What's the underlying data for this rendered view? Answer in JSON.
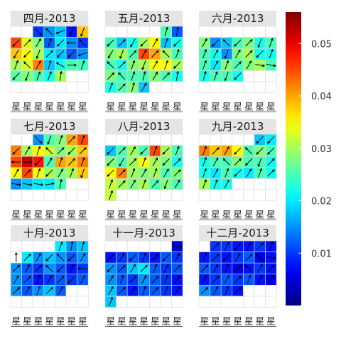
{
  "chart_data": {
    "type": "heatmap",
    "colorbar": {
      "colormap": "jet",
      "min": 0.0,
      "max": 0.056,
      "ticks": [
        0.01,
        0.02,
        0.03,
        0.04,
        0.05
      ],
      "tick_labels": [
        "0.01",
        "0.02",
        "0.03",
        "0.04",
        "0.05"
      ]
    },
    "weekday_label": "星",
    "panels": [
      {
        "title": "四月-2013",
        "values": [
          [
            null,
            null,
            0.01,
            0.015,
            0.018,
            0.008,
            0.038
          ],
          [
            0.045,
            0.033,
            0.028,
            0.012,
            0.02,
            0.015,
            0.01
          ],
          [
            0.038,
            0.035,
            0.03,
            0.02,
            0.018,
            0.012,
            0.015
          ],
          [
            0.03,
            0.033,
            0.042,
            0.018,
            0.022,
            0.025,
            0.025
          ],
          [
            0.026,
            0.028,
            0.025,
            0.022,
            0.03,
            null,
            null
          ],
          [
            null,
            null,
            null,
            null,
            null,
            null,
            null
          ]
        ],
        "arrows": [
          [
            null,
            null,
            135,
            315,
            250,
            210,
            200
          ],
          [
            225,
            45,
            30,
            20,
            225,
            270,
            315
          ],
          [
            210,
            225,
            200,
            45,
            225,
            225,
            250
          ],
          [
            20,
            315,
            30,
            15,
            300,
            90,
            20
          ],
          [
            225,
            200,
            20,
            20,
            10,
            null,
            null
          ],
          [
            null,
            null,
            null,
            null,
            null,
            null,
            null
          ]
        ]
      },
      {
        "title": "五月-2013",
        "values": [
          [
            null,
            null,
            null,
            null,
            null,
            0.025,
            0.012
          ],
          [
            0.025,
            0.018,
            0.022,
            0.03,
            0.035,
            0.018,
            0.022
          ],
          [
            0.028,
            0.03,
            0.025,
            0.045,
            0.04,
            0.03,
            0.025
          ],
          [
            0.025,
            0.022,
            0.028,
            0.03,
            0.035,
            0.035,
            0.03
          ],
          [
            0.028,
            0.025,
            0.025,
            0.025,
            0.028,
            0.025,
            0.022
          ],
          [
            0.022,
            0.025,
            0.028,
            0.018,
            null,
            null,
            null
          ]
        ],
        "arrows": [
          [
            null,
            null,
            null,
            null,
            null,
            15,
            10
          ],
          [
            225,
            45,
            210,
            225,
            30,
            20,
            225
          ],
          [
            210,
            200,
            45,
            30,
            45,
            315,
            20
          ],
          [
            315,
            45,
            20,
            200,
            30,
            20,
            225
          ],
          [
            45,
            315,
            20,
            15,
            30,
            45,
            10
          ],
          [
            20,
            45,
            15,
            30,
            null,
            null,
            null
          ]
        ]
      },
      {
        "title": "六月-2013",
        "values": [
          [
            null,
            null,
            null,
            null,
            null,
            null,
            null
          ],
          [
            0.028,
            0.015,
            0.018,
            0.025,
            0.028,
            0.022,
            0.025
          ],
          [
            0.025,
            0.022,
            0.015,
            0.028,
            0.03,
            0.022,
            0.022
          ],
          [
            0.025,
            0.02,
            0.028,
            0.025,
            0.028,
            0.03,
            0.025
          ],
          [
            0.022,
            0.025,
            0.025,
            0.022,
            null,
            null,
            null
          ],
          [
            null,
            null,
            null,
            null,
            null,
            null,
            null
          ]
        ],
        "arrows": [
          [
            null,
            null,
            null,
            null,
            null,
            null,
            null
          ],
          [
            30,
            225,
            315,
            225,
            45,
            200,
            20
          ],
          [
            20,
            30,
            200,
            30,
            45,
            225,
            20
          ],
          [
            20,
            30,
            20,
            45,
            30,
            100,
            100
          ],
          [
            15,
            20,
            200,
            225,
            null,
            null,
            null
          ],
          [
            null,
            null,
            null,
            null,
            null,
            null,
            null
          ]
        ]
      },
      {
        "title": "七月-2013",
        "values": [
          [
            null,
            null,
            0.015,
            0.025,
            0.028,
            0.04,
            0.045
          ],
          [
            0.042,
            0.03,
            0.035,
            0.032,
            0.028,
            0.03,
            0.038
          ],
          [
            0.045,
            0.052,
            0.048,
            0.025,
            0.04,
            0.038,
            0.042
          ],
          [
            0.035,
            0.045,
            0.035,
            0.03,
            0.028,
            0.03,
            0.038
          ],
          [
            0.015,
            0.018,
            0.02,
            0.02,
            0.025,
            null,
            null
          ],
          [
            null,
            null,
            null,
            null,
            null,
            null,
            null
          ]
        ],
        "arrows": [
          [
            null,
            null,
            135,
            200,
            20,
            45,
            20
          ],
          [
            225,
            30,
            20,
            315,
            45,
            225,
            45
          ],
          [
            270,
            90,
            225,
            30,
            20,
            45,
            20
          ],
          [
            30,
            45,
            20,
            225,
            30,
            20,
            200
          ],
          [
            100,
            100,
            100,
            80,
            10,
            null,
            null
          ],
          [
            null,
            null,
            null,
            null,
            null,
            null,
            null
          ]
        ]
      },
      {
        "title": "八月-2013",
        "values": [
          [
            null,
            null,
            null,
            null,
            null,
            null,
            null
          ],
          [
            0.018,
            0.025,
            0.03,
            0.025,
            0.045,
            0.03,
            0.025
          ],
          [
            0.028,
            0.025,
            0.03,
            0.035,
            0.03,
            0.028,
            0.022
          ],
          [
            0.035,
            0.042,
            0.03,
            0.028,
            0.03,
            0.025,
            0.028
          ],
          [
            0.032,
            0.03,
            0.028,
            0.03,
            0.025,
            0.028,
            0.025
          ],
          [
            0.032,
            null,
            null,
            null,
            null,
            null,
            null
          ]
        ],
        "arrows": [
          [
            null,
            null,
            null,
            null,
            null,
            null,
            null
          ],
          [
            225,
            45,
            30,
            225,
            20,
            225,
            20
          ],
          [
            225,
            210,
            45,
            20,
            30,
            225,
            45
          ],
          [
            225,
            45,
            20,
            30,
            20,
            30,
            45
          ],
          [
            20,
            45,
            30,
            20,
            45,
            200,
            30
          ],
          [
            20,
            null,
            null,
            null,
            null,
            null,
            null
          ]
        ]
      },
      {
        "title": "九月-2013",
        "values": [
          [
            null,
            null,
            null,
            null,
            null,
            0.018,
            0.02
          ],
          [
            0.042,
            0.038,
            0.04,
            0.035,
            0.025,
            0.028,
            0.025
          ],
          [
            0.022,
            0.025,
            0.025,
            0.028,
            0.025,
            0.025,
            0.022
          ],
          [
            0.022,
            0.02,
            0.025,
            0.022,
            0.02,
            0.025,
            0.022
          ],
          [
            0.03,
            0.022,
            0.022,
            null,
            null,
            null,
            null
          ],
          [
            null,
            null,
            null,
            null,
            null,
            null,
            null
          ]
        ],
        "arrows": [
          [
            null,
            null,
            null,
            null,
            null,
            225,
            225
          ],
          [
            20,
            45,
            30,
            225,
            315,
            225,
            225
          ],
          [
            20,
            30,
            315,
            45,
            225,
            200,
            45
          ],
          [
            20,
            30,
            20,
            225,
            30,
            20,
            45
          ],
          [
            20,
            20,
            30,
            null,
            null,
            null,
            null
          ],
          [
            null,
            null,
            null,
            null,
            null,
            null,
            null
          ]
        ]
      },
      {
        "title": "十月-2013",
        "values": [
          [
            null,
            null,
            null,
            null,
            0.02,
            0.015,
            0.018
          ],
          [
            null,
            0.02,
            0.015,
            0.018,
            0.015,
            0.012,
            0.015
          ],
          [
            0.015,
            0.012,
            0.01,
            0.015,
            0.012,
            0.008,
            0.01
          ],
          [
            0.015,
            0.012,
            0.008,
            0.01,
            0.012,
            0.01,
            0.012
          ],
          [
            0.015,
            0.012,
            0.015,
            0.018,
            0.012,
            null,
            null
          ],
          [
            null,
            null,
            null,
            null,
            null,
            null,
            null
          ]
        ],
        "arrows": [
          [
            null,
            null,
            null,
            null,
            20,
            10,
            15
          ],
          [
            0,
            45,
            30,
            225,
            315,
            225,
            30
          ],
          [
            45,
            30,
            45,
            315,
            225,
            30,
            270
          ],
          [
            30,
            45,
            20,
            30,
            45,
            225,
            30
          ],
          [
            45,
            30,
            20,
            45,
            30,
            null,
            null
          ],
          [
            null,
            null,
            null,
            null,
            null,
            null,
            null
          ]
        ]
      },
      {
        "title": "十一月-2013",
        "values": [
          [
            null,
            null,
            null,
            null,
            null,
            null,
            0.005
          ],
          [
            0.008,
            0.01,
            0.012,
            0.01,
            0.008,
            0.012,
            0.01
          ],
          [
            0.015,
            0.012,
            0.018,
            0.02,
            0.012,
            0.01,
            0.012
          ],
          [
            0.015,
            0.012,
            0.01,
            0.015,
            0.012,
            0.01,
            0.008
          ],
          [
            0.018,
            0.012,
            0.008,
            0.012,
            0.012,
            0.01,
            0.008
          ],
          [
            0.018,
            null,
            null,
            null,
            null,
            null,
            null
          ]
        ],
        "arrows": [
          [
            null,
            null,
            null,
            null,
            null,
            null,
            90
          ],
          [
            45,
            30,
            225,
            20,
            45,
            225,
            30
          ],
          [
            225,
            45,
            30,
            45,
            20,
            30,
            45
          ],
          [
            30,
            20,
            45,
            30,
            45,
            20,
            30
          ],
          [
            30,
            45,
            30,
            20,
            45,
            20,
            30
          ],
          [
            20,
            null,
            null,
            null,
            null,
            null,
            null
          ]
        ]
      },
      {
        "title": "十二月-2013",
        "values": [
          [
            null,
            0.01,
            0.01,
            0.008,
            0.008,
            0.01,
            0.008
          ],
          [
            0.008,
            0.01,
            0.008,
            0.01,
            0.012,
            0.006,
            0.008
          ],
          [
            0.012,
            0.01,
            0.008,
            0.006,
            0.008,
            0.01,
            0.008
          ],
          [
            0.008,
            0.01,
            0.012,
            0.01,
            0.012,
            0.008,
            0.006
          ],
          [
            0.015,
            0.012,
            0.01,
            0.008,
            null,
            null,
            null
          ],
          [
            null,
            null,
            null,
            null,
            null,
            null,
            null
          ]
        ],
        "arrows": [
          [
            null,
            45,
            30,
            225,
            30,
            45,
            20
          ],
          [
            20,
            45,
            225,
            30,
            45,
            315,
            100
          ],
          [
            45,
            30,
            20,
            45,
            315,
            30,
            45
          ],
          [
            20,
            45,
            30,
            45,
            20,
            30,
            30
          ],
          [
            45,
            30,
            20,
            45,
            null,
            null,
            null
          ],
          [
            null,
            null,
            null,
            null,
            null,
            null,
            null
          ]
        ]
      }
    ]
  }
}
